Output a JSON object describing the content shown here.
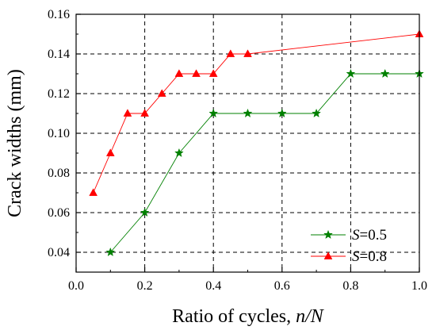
{
  "chart_data": {
    "type": "line",
    "title": "",
    "xlabel": "Ratio of cycles, ",
    "xlabel_italic": "n/N",
    "ylabel": "Crack widths (mm)",
    "xlim": [
      0.0,
      1.0
    ],
    "ylim": [
      0.03,
      0.16
    ],
    "xticks": [
      "0.0",
      "0.2",
      "0.4",
      "0.6",
      "0.8",
      "1.0"
    ],
    "yticks": [
      "0.04",
      "0.06",
      "0.08",
      "0.10",
      "0.12",
      "0.14",
      "0.16"
    ],
    "grid": "dashed at major ticks",
    "legend_position": "bottom-right",
    "series": [
      {
        "name": "=0.5",
        "name_prefix_italic": "S",
        "color": "#008000",
        "marker": "star",
        "x": [
          0.1,
          0.2,
          0.3,
          0.4,
          0.5,
          0.6,
          0.7,
          0.8,
          0.9,
          1.0
        ],
        "y": [
          0.04,
          0.06,
          0.09,
          0.11,
          0.11,
          0.11,
          0.11,
          0.13,
          0.13,
          0.13
        ]
      },
      {
        "name": "=0.8",
        "name_prefix_italic": "S",
        "color": "#ff0000",
        "marker": "triangle",
        "x": [
          0.05,
          0.1,
          0.15,
          0.2,
          0.25,
          0.3,
          0.35,
          0.4,
          0.45,
          0.5,
          1.0
        ],
        "y": [
          0.07,
          0.09,
          0.11,
          0.11,
          0.12,
          0.13,
          0.13,
          0.13,
          0.14,
          0.14,
          0.15
        ]
      }
    ]
  }
}
